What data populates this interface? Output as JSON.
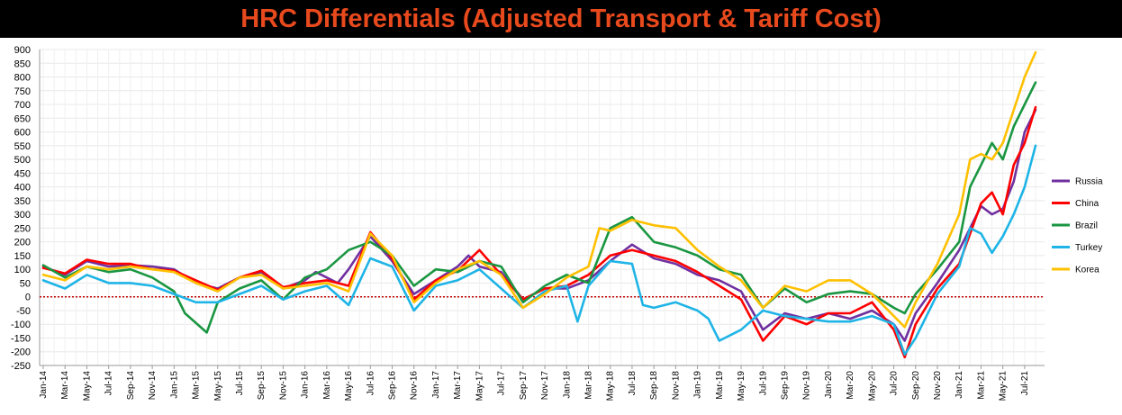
{
  "title": "HRC Differentials (Adjusted Transport & Tariff Cost)",
  "chart_data": {
    "type": "line",
    "title": "HRC Differentials (Adjusted Transport & Tariff Cost)",
    "xlabel": "",
    "ylabel": "",
    "ylim": [
      -250,
      900
    ],
    "ytick_step": 50,
    "x_range": [
      "2014-01",
      "2021-08"
    ],
    "x_tick_labels": [
      "Jan-14",
      "Mar-14",
      "May-14",
      "Jul-14",
      "Sep-14",
      "Nov-14",
      "Jan-15",
      "Mar-15",
      "May-15",
      "Jul-15",
      "Sep-15",
      "Nov-15",
      "Jan-16",
      "Mar-16",
      "May-16",
      "Jul-16",
      "Sep-16",
      "Nov-16",
      "Jan-17",
      "Mar-17",
      "May-17",
      "Jul-17",
      "Sep-17",
      "Nov-17",
      "Jan-18",
      "Mar-18",
      "May-18",
      "Jul-18",
      "Sep-18",
      "Nov-18",
      "Jan-19",
      "Mar-19",
      "May-19",
      "Jul-19",
      "Sep-19",
      "Nov-19",
      "Jan-20",
      "Mar-20",
      "May-20",
      "Jul-20",
      "Sep-20",
      "Nov-20",
      "Jan-21",
      "Mar-21",
      "May-21",
      "Jul-21"
    ],
    "grid": true,
    "zero_line": {
      "style": "dotted",
      "color": "#c00000"
    },
    "legend_position": "right",
    "series": [
      {
        "name": "Russia",
        "color": "#7030a0",
        "points": [
          [
            "2014-01",
            110
          ],
          [
            "2014-03",
            80
          ],
          [
            "2014-05",
            130
          ],
          [
            "2014-07",
            110
          ],
          [
            "2014-09",
            115
          ],
          [
            "2014-11",
            110
          ],
          [
            "2015-01",
            100
          ],
          [
            "2015-03",
            50
          ],
          [
            "2015-05",
            30
          ],
          [
            "2015-07",
            70
          ],
          [
            "2015-09",
            90
          ],
          [
            "2015-11",
            30
          ],
          [
            "2016-01",
            60
          ],
          [
            "2016-02",
            90
          ],
          [
            "2016-04",
            50
          ],
          [
            "2016-05",
            100
          ],
          [
            "2016-07",
            220
          ],
          [
            "2016-09",
            130
          ],
          [
            "2016-11",
            10
          ],
          [
            "2017-01",
            60
          ],
          [
            "2017-03",
            110
          ],
          [
            "2017-04",
            150
          ],
          [
            "2017-05",
            110
          ],
          [
            "2017-07",
            90
          ],
          [
            "2017-09",
            -10
          ],
          [
            "2017-11",
            30
          ],
          [
            "2018-01",
            30
          ],
          [
            "2018-03",
            60
          ],
          [
            "2018-05",
            130
          ],
          [
            "2018-07",
            190
          ],
          [
            "2018-09",
            140
          ],
          [
            "2018-11",
            120
          ],
          [
            "2019-01",
            80
          ],
          [
            "2019-03",
            60
          ],
          [
            "2019-05",
            20
          ],
          [
            "2019-07",
            -120
          ],
          [
            "2019-09",
            -60
          ],
          [
            "2019-11",
            -80
          ],
          [
            "2020-01",
            -60
          ],
          [
            "2020-03",
            -80
          ],
          [
            "2020-05",
            -50
          ],
          [
            "2020-07",
            -100
          ],
          [
            "2020-08",
            -160
          ],
          [
            "2020-09",
            -60
          ],
          [
            "2020-11",
            50
          ],
          [
            "2021-01",
            170
          ],
          [
            "2021-03",
            330
          ],
          [
            "2021-04",
            300
          ],
          [
            "2021-05",
            320
          ],
          [
            "2021-06",
            420
          ],
          [
            "2021-07",
            600
          ],
          [
            "2021-08",
            680
          ]
        ]
      },
      {
        "name": "China",
        "color": "#ff0000",
        "points": [
          [
            "2014-01",
            105
          ],
          [
            "2014-03",
            85
          ],
          [
            "2014-05",
            135
          ],
          [
            "2014-07",
            120
          ],
          [
            "2014-09",
            120
          ],
          [
            "2014-11",
            100
          ],
          [
            "2015-01",
            95
          ],
          [
            "2015-03",
            60
          ],
          [
            "2015-05",
            25
          ],
          [
            "2015-07",
            70
          ],
          [
            "2015-09",
            95
          ],
          [
            "2015-11",
            35
          ],
          [
            "2016-01",
            50
          ],
          [
            "2016-03",
            60
          ],
          [
            "2016-05",
            40
          ],
          [
            "2016-07",
            235
          ],
          [
            "2016-09",
            140
          ],
          [
            "2016-11",
            -10
          ],
          [
            "2017-01",
            60
          ],
          [
            "2017-03",
            95
          ],
          [
            "2017-05",
            170
          ],
          [
            "2017-07",
            80
          ],
          [
            "2017-09",
            -10
          ],
          [
            "2017-11",
            30
          ],
          [
            "2018-01",
            40
          ],
          [
            "2018-03",
            80
          ],
          [
            "2018-05",
            150
          ],
          [
            "2018-07",
            170
          ],
          [
            "2018-09",
            150
          ],
          [
            "2018-11",
            130
          ],
          [
            "2019-01",
            90
          ],
          [
            "2019-03",
            40
          ],
          [
            "2019-05",
            -10
          ],
          [
            "2019-07",
            -160
          ],
          [
            "2019-09",
            -70
          ],
          [
            "2019-11",
            -100
          ],
          [
            "2020-01",
            -60
          ],
          [
            "2020-03",
            -60
          ],
          [
            "2020-05",
            -20
          ],
          [
            "2020-07",
            -120
          ],
          [
            "2020-08",
            -220
          ],
          [
            "2020-09",
            -100
          ],
          [
            "2020-11",
            30
          ],
          [
            "2021-01",
            120
          ],
          [
            "2021-03",
            340
          ],
          [
            "2021-04",
            380
          ],
          [
            "2021-05",
            300
          ],
          [
            "2021-06",
            480
          ],
          [
            "2021-07",
            560
          ],
          [
            "2021-08",
            690
          ]
        ]
      },
      {
        "name": "Brazil",
        "color": "#1a9641",
        "points": [
          [
            "2014-01",
            115
          ],
          [
            "2014-03",
            70
          ],
          [
            "2014-05",
            110
          ],
          [
            "2014-07",
            90
          ],
          [
            "2014-09",
            100
          ],
          [
            "2014-11",
            70
          ],
          [
            "2015-01",
            20
          ],
          [
            "2015-02",
            -60
          ],
          [
            "2015-04",
            -130
          ],
          [
            "2015-05",
            -20
          ],
          [
            "2015-07",
            30
          ],
          [
            "2015-09",
            60
          ],
          [
            "2015-11",
            -10
          ],
          [
            "2016-01",
            70
          ],
          [
            "2016-03",
            100
          ],
          [
            "2016-05",
            170
          ],
          [
            "2016-07",
            200
          ],
          [
            "2016-09",
            150
          ],
          [
            "2016-11",
            40
          ],
          [
            "2017-01",
            100
          ],
          [
            "2017-03",
            90
          ],
          [
            "2017-05",
            130
          ],
          [
            "2017-07",
            110
          ],
          [
            "2017-09",
            -20
          ],
          [
            "2017-11",
            40
          ],
          [
            "2018-01",
            80
          ],
          [
            "2018-03",
            50
          ],
          [
            "2018-05",
            250
          ],
          [
            "2018-07",
            290
          ],
          [
            "2018-09",
            200
          ],
          [
            "2018-11",
            180
          ],
          [
            "2019-01",
            150
          ],
          [
            "2019-03",
            100
          ],
          [
            "2019-05",
            80
          ],
          [
            "2019-07",
            -40
          ],
          [
            "2019-09",
            30
          ],
          [
            "2019-11",
            -20
          ],
          [
            "2020-01",
            10
          ],
          [
            "2020-03",
            20
          ],
          [
            "2020-05",
            10
          ],
          [
            "2020-07",
            -40
          ],
          [
            "2020-08",
            -60
          ],
          [
            "2020-09",
            10
          ],
          [
            "2020-11",
            100
          ],
          [
            "2021-01",
            200
          ],
          [
            "2021-02",
            400
          ],
          [
            "2021-03",
            480
          ],
          [
            "2021-04",
            560
          ],
          [
            "2021-05",
            500
          ],
          [
            "2021-06",
            620
          ],
          [
            "2021-07",
            700
          ],
          [
            "2021-08",
            780
          ]
        ]
      },
      {
        "name": "Turkey",
        "color": "#1eb4e6",
        "points": [
          [
            "2014-01",
            60
          ],
          [
            "2014-03",
            30
          ],
          [
            "2014-05",
            80
          ],
          [
            "2014-07",
            50
          ],
          [
            "2014-09",
            50
          ],
          [
            "2014-11",
            40
          ],
          [
            "2015-01",
            10
          ],
          [
            "2015-03",
            -20
          ],
          [
            "2015-05",
            -20
          ],
          [
            "2015-07",
            10
          ],
          [
            "2015-09",
            40
          ],
          [
            "2015-11",
            -10
          ],
          [
            "2016-01",
            20
          ],
          [
            "2016-03",
            40
          ],
          [
            "2016-05",
            -30
          ],
          [
            "2016-07",
            140
          ],
          [
            "2016-09",
            110
          ],
          [
            "2016-11",
            -50
          ],
          [
            "2017-01",
            40
          ],
          [
            "2017-03",
            60
          ],
          [
            "2017-05",
            100
          ],
          [
            "2017-07",
            30
          ],
          [
            "2017-09",
            -40
          ],
          [
            "2017-11",
            20
          ],
          [
            "2018-01",
            40
          ],
          [
            "2018-02",
            -90
          ],
          [
            "2018-03",
            40
          ],
          [
            "2018-05",
            130
          ],
          [
            "2018-07",
            120
          ],
          [
            "2018-08",
            -30
          ],
          [
            "2018-09",
            -40
          ],
          [
            "2018-11",
            -20
          ],
          [
            "2019-01",
            -50
          ],
          [
            "2019-02",
            -80
          ],
          [
            "2019-03",
            -160
          ],
          [
            "2019-05",
            -120
          ],
          [
            "2019-07",
            -50
          ],
          [
            "2019-09",
            -70
          ],
          [
            "2019-11",
            -80
          ],
          [
            "2020-01",
            -90
          ],
          [
            "2020-03",
            -90
          ],
          [
            "2020-05",
            -70
          ],
          [
            "2020-07",
            -100
          ],
          [
            "2020-08",
            -210
          ],
          [
            "2020-09",
            -150
          ],
          [
            "2020-11",
            10
          ],
          [
            "2021-01",
            110
          ],
          [
            "2021-02",
            250
          ],
          [
            "2021-03",
            230
          ],
          [
            "2021-04",
            160
          ],
          [
            "2021-05",
            220
          ],
          [
            "2021-06",
            300
          ],
          [
            "2021-07",
            400
          ],
          [
            "2021-08",
            550
          ]
        ]
      },
      {
        "name": "Korea",
        "color": "#ffc000",
        "points": [
          [
            "2014-01",
            80
          ],
          [
            "2014-03",
            60
          ],
          [
            "2014-05",
            110
          ],
          [
            "2014-07",
            100
          ],
          [
            "2014-09",
            110
          ],
          [
            "2014-11",
            100
          ],
          [
            "2015-01",
            90
          ],
          [
            "2015-03",
            50
          ],
          [
            "2015-05",
            20
          ],
          [
            "2015-07",
            70
          ],
          [
            "2015-09",
            80
          ],
          [
            "2015-11",
            30
          ],
          [
            "2016-01",
            40
          ],
          [
            "2016-03",
            50
          ],
          [
            "2016-05",
            20
          ],
          [
            "2016-07",
            230
          ],
          [
            "2016-09",
            150
          ],
          [
            "2016-11",
            -20
          ],
          [
            "2017-01",
            50
          ],
          [
            "2017-03",
            100
          ],
          [
            "2017-05",
            130
          ],
          [
            "2017-07",
            80
          ],
          [
            "2017-09",
            -40
          ],
          [
            "2017-11",
            10
          ],
          [
            "2018-01",
            70
          ],
          [
            "2018-03",
            110
          ],
          [
            "2018-04",
            250
          ],
          [
            "2018-05",
            240
          ],
          [
            "2018-07",
            280
          ],
          [
            "2018-09",
            260
          ],
          [
            "2018-11",
            250
          ],
          [
            "2019-01",
            170
          ],
          [
            "2019-03",
            110
          ],
          [
            "2019-05",
            60
          ],
          [
            "2019-07",
            -40
          ],
          [
            "2019-09",
            40
          ],
          [
            "2019-11",
            20
          ],
          [
            "2020-01",
            60
          ],
          [
            "2020-03",
            60
          ],
          [
            "2020-05",
            10
          ],
          [
            "2020-07",
            -70
          ],
          [
            "2020-08",
            -110
          ],
          [
            "2020-09",
            -20
          ],
          [
            "2020-11",
            120
          ],
          [
            "2021-01",
            300
          ],
          [
            "2021-02",
            500
          ],
          [
            "2021-03",
            520
          ],
          [
            "2021-04",
            500
          ],
          [
            "2021-05",
            560
          ],
          [
            "2021-06",
            680
          ],
          [
            "2021-07",
            800
          ],
          [
            "2021-08",
            890
          ]
        ]
      }
    ]
  }
}
